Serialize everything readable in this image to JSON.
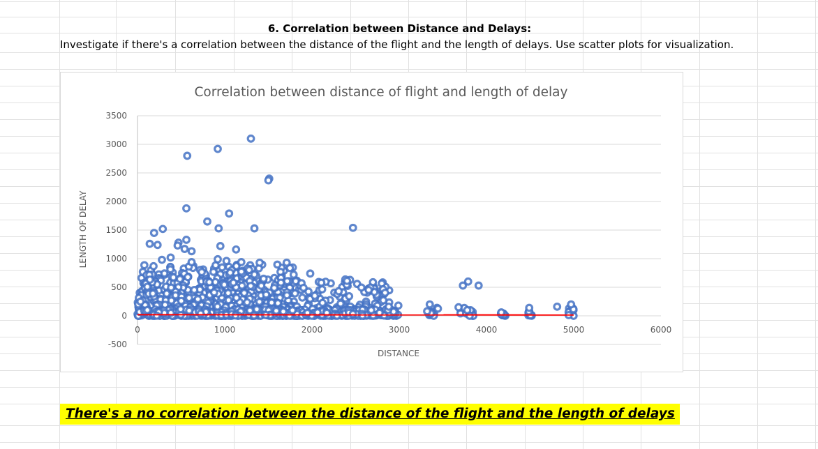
{
  "sheet": {
    "heading": "6. Correlation between Distance and Delays:",
    "subheading": "Investigate if there's a correlation between the distance of the flight and the length of delays. Use scatter plots for visualization.",
    "conclusion": "There's a no correlation between the distance of the flight and the length of delays"
  },
  "chart_data": {
    "type": "scatter",
    "title": "Correlation between distance of flight and length of delay",
    "xlabel": "DISTANCE",
    "ylabel": "LENGTH OF DELAY",
    "xlim": [
      0,
      6000
    ],
    "ylim": [
      -500,
      3500
    ],
    "xticks": [
      0,
      1000,
      2000,
      3000,
      4000,
      5000,
      6000
    ],
    "yticks": [
      -500,
      0,
      500,
      1000,
      1500,
      2000,
      2500,
      3000,
      3500
    ],
    "grid": true,
    "legend": "none",
    "marker_color": "#4472c4",
    "trendline_color": "#ff0000",
    "trendline": {
      "x": [
        0,
        5000
      ],
      "y": [
        20,
        15
      ]
    },
    "outliers": [
      [
        1300,
        3100
      ],
      [
        920,
        2920
      ],
      [
        570,
        2800
      ],
      [
        1510,
        2400
      ],
      [
        1500,
        2370
      ],
      [
        560,
        1880
      ],
      [
        1050,
        1790
      ],
      [
        800,
        1650
      ],
      [
        930,
        1530
      ],
      [
        1340,
        1530
      ],
      [
        2470,
        1540
      ],
      [
        290,
        1520
      ],
      [
        190,
        1450
      ],
      [
        140,
        1260
      ],
      [
        230,
        1240
      ],
      [
        470,
        1280
      ],
      [
        460,
        1230
      ],
      [
        560,
        1330
      ],
      [
        540,
        1170
      ],
      [
        620,
        1130
      ],
      [
        950,
        1220
      ],
      [
        1130,
        1160
      ],
      [
        280,
        980
      ],
      [
        380,
        1020
      ],
      [
        620,
        940
      ],
      [
        920,
        990
      ],
      [
        1020,
        960
      ],
      [
        1190,
        940
      ],
      [
        1400,
        930
      ],
      [
        1710,
        930
      ],
      [
        1790,
        720
      ],
      [
        1980,
        740
      ],
      [
        3730,
        530
      ],
      [
        3790,
        600
      ],
      [
        3910,
        530
      ],
      [
        3350,
        200
      ],
      [
        3680,
        150
      ],
      [
        3780,
        100
      ],
      [
        4170,
        60
      ],
      [
        4490,
        140
      ],
      [
        4810,
        160
      ],
      [
        4970,
        200
      ],
      [
        2880,
        160
      ],
      [
        2990,
        180
      ],
      [
        3320,
        80
      ]
    ],
    "dense_regions": [
      {
        "x": [
          0,
          1800
        ],
        "y": [
          0,
          900
        ],
        "count": 500
      },
      {
        "x": [
          0,
          2900
        ],
        "y": [
          0,
          650
        ],
        "count": 420
      },
      {
        "x": [
          0,
          3000
        ],
        "y": [
          0,
          120
        ],
        "count": 380
      },
      {
        "x": [
          3300,
          3450
        ],
        "y": [
          0,
          150
        ],
        "count": 12
      },
      {
        "x": [
          3700,
          3850
        ],
        "y": [
          0,
          150
        ],
        "count": 18
      },
      {
        "x": [
          4150,
          4250
        ],
        "y": [
          0,
          70
        ],
        "count": 10
      },
      {
        "x": [
          4480,
          4520
        ],
        "y": [
          0,
          90
        ],
        "count": 8
      },
      {
        "x": [
          4940,
          5000
        ],
        "y": [
          0,
          150
        ],
        "count": 10
      }
    ]
  }
}
